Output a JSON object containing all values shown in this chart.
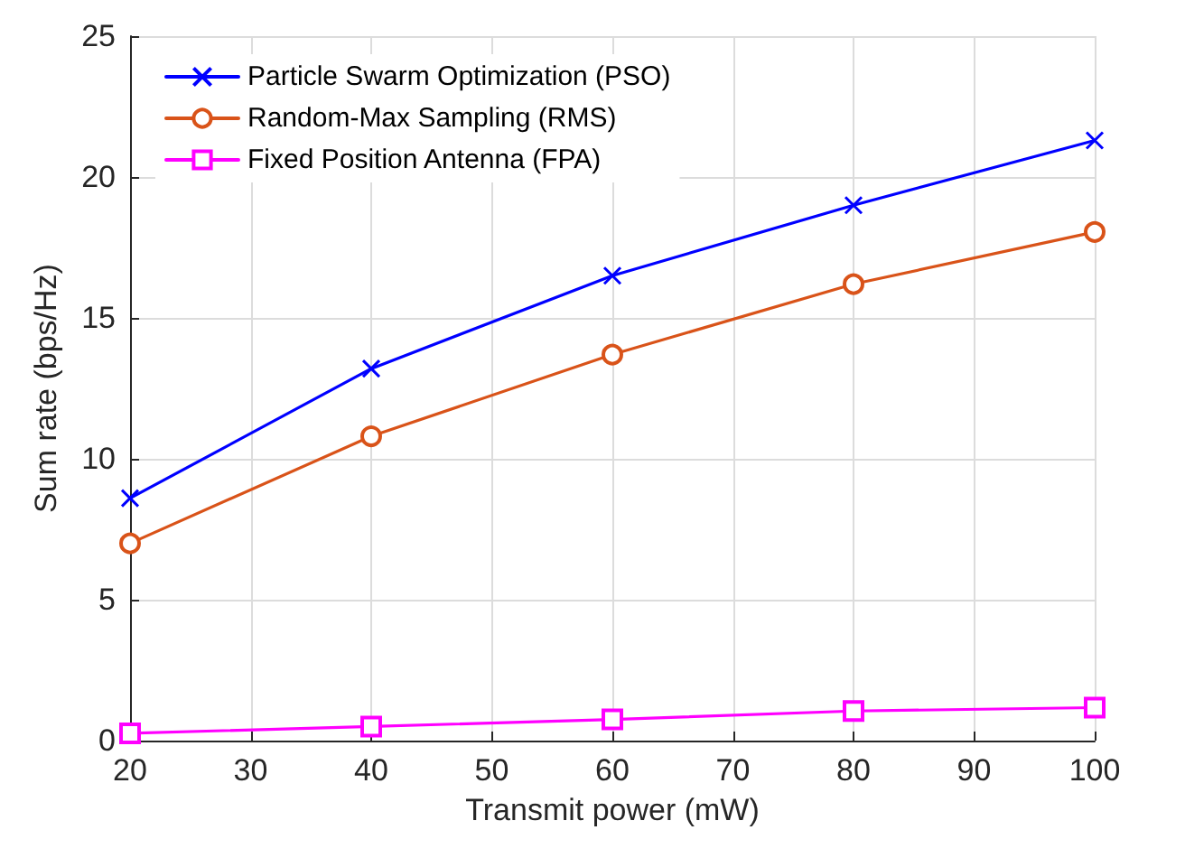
{
  "chart_data": {
    "type": "line",
    "xlabel": "Transmit power (mW)",
    "ylabel": "Sum rate (bps/Hz)",
    "x": [
      20,
      40,
      60,
      80,
      100
    ],
    "series": [
      {
        "name": "Particle Swarm Optimization (PSO)",
        "color": "#0000ff",
        "marker": "cross",
        "values": [
          8.6,
          13.2,
          16.5,
          19.0,
          21.3
        ]
      },
      {
        "name": "Random-Max Sampling (RMS)",
        "color": "#d95319",
        "marker": "circle",
        "values": [
          7.0,
          10.8,
          13.7,
          16.2,
          18.05
        ]
      },
      {
        "name": "Fixed Position Antenna (FPA)",
        "color": "#ff00ff",
        "marker": "square",
        "values": [
          0.26,
          0.5,
          0.75,
          1.05,
          1.17
        ]
      }
    ],
    "xlim": [
      20,
      100
    ],
    "xticks": [
      20,
      30,
      40,
      50,
      60,
      70,
      80,
      90,
      100
    ],
    "ylim": [
      0,
      25
    ],
    "yticks": [
      0,
      5,
      10,
      15,
      20,
      25
    ],
    "grid": true,
    "legend": "top left",
    "line_style": "solid"
  }
}
